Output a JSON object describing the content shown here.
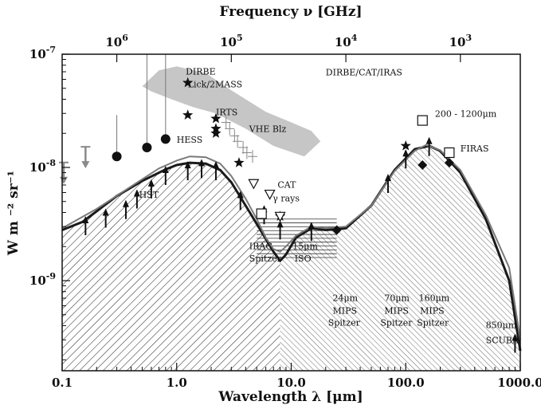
{
  "chart_data": {
    "type": "line",
    "xscale": "log",
    "yscale": "log",
    "xlim": [
      0.1,
      1000
    ],
    "ylim": [
      1.6e-10,
      1e-07
    ],
    "xlabel": "Wavelength λ [μm]",
    "ylabel": "W m ⁻² sr⁻¹",
    "x2label": "Frequency ν [GHz]",
    "grid": false,
    "xticks": [
      {
        "value": 0.1,
        "label": "0.1"
      },
      {
        "value": 1,
        "label": "1.0"
      },
      {
        "value": 10,
        "label": "10.0"
      },
      {
        "value": 100,
        "label": "100.0"
      },
      {
        "value": 1000,
        "label": "1000.0"
      }
    ],
    "yticks": [
      {
        "value": 1e-09,
        "label": "10",
        "exp": "-9"
      },
      {
        "value": 1e-08,
        "label": "10",
        "exp": "-8"
      },
      {
        "value": 1e-07,
        "label": "10",
        "exp": "-7"
      }
    ],
    "x2ticks": [
      {
        "value": 0.3,
        "label": "10",
        "exp": "6"
      },
      {
        "value": 3,
        "label": "10",
        "exp": "5"
      },
      {
        "value": 30,
        "label": "10",
        "exp": "4"
      },
      {
        "value": 300,
        "label": "10",
        "exp": "3"
      }
    ],
    "series": [
      {
        "style": "thick-dark",
        "x": [
          0.1,
          0.15,
          0.2,
          0.3,
          0.5,
          0.8,
          1.0,
          1.3,
          1.8,
          2.4,
          3.0,
          4.0,
          5.5,
          7.0,
          8.0,
          9.0,
          11,
          15,
          20,
          30,
          50,
          80,
          120,
          160,
          200,
          300,
          500,
          800,
          1000
        ],
        "y": [
          2.8e-09,
          3.3e-09,
          4.1e-09,
          5.6e-09,
          7.6e-09,
          9.6e-09,
          1.05e-08,
          1.1e-08,
          1.08e-08,
          9.5e-09,
          7.4e-09,
          4.6e-09,
          2.7e-09,
          1.8e-09,
          1.5e-09,
          1.7e-09,
          2.4e-09,
          2.9e-09,
          2.8e-09,
          2.9e-09,
          4.6e-09,
          9.5e-09,
          1.45e-08,
          1.55e-08,
          1.4e-08,
          9e-09,
          3.5e-09,
          1e-09,
          2.4e-10
        ]
      },
      {
        "style": "thin-grey",
        "x": [
          0.1,
          0.2,
          0.4,
          0.7,
          1.0,
          1.3,
          1.8,
          2.4,
          3.0,
          4.0,
          5.0,
          6.0,
          7.0,
          8.0,
          9.0,
          11,
          15,
          20,
          30,
          50,
          80,
          120,
          150,
          200,
          300,
          500,
          800,
          1000
        ],
        "y": [
          2.9e-09,
          4.3e-09,
          6.8e-09,
          9.8e-09,
          1.15e-08,
          1.25e-08,
          1.23e-08,
          1.08e-08,
          8.4e-09,
          5.3e-09,
          3.5e-09,
          2.4e-09,
          1.9e-09,
          1.8e-09,
          2e-09,
          2.5e-09,
          3e-09,
          2.9e-09,
          3e-09,
          4.6e-09,
          9.3e-09,
          1.4e-08,
          1.58e-08,
          1.42e-08,
          9.5e-09,
          3.8e-09,
          1.3e-09,
          3e-10
        ]
      }
    ],
    "lower_limits": [
      {
        "x": 0.16,
        "y": 3.6e-09
      },
      {
        "x": 0.24,
        "y": 4.2e-09
      },
      {
        "x": 0.36,
        "y": 5e-09
      },
      {
        "x": 0.45,
        "y": 6.2e-09
      },
      {
        "x": 0.6,
        "y": 7.6e-09
      },
      {
        "x": 0.8,
        "y": 1e-08
      },
      {
        "x": 1.25,
        "y": 1.1e-08
      },
      {
        "x": 1.65,
        "y": 1.15e-08
      },
      {
        "x": 2.2,
        "y": 1.1e-08
      },
      {
        "x": 3.6,
        "y": 6e-09
      },
      {
        "x": 5.8,
        "y": 4.5e-09
      },
      {
        "x": 8.0,
        "y": 3.3e-09
      },
      {
        "x": 15,
        "y": 3.2e-09
      },
      {
        "x": 70,
        "y": 8.5e-09
      },
      {
        "x": 100,
        "y": 1.4e-08
      },
      {
        "x": 160,
        "y": 1.8e-08
      },
      {
        "x": 900,
        "y": 3.3e-10
      }
    ],
    "circles": [
      {
        "x": 0.3,
        "y": 1.25e-08,
        "y_hi": 2.9e-08
      },
      {
        "x": 0.55,
        "y": 1.5e-08,
        "y_hi": 1e-07
      },
      {
        "x": 0.8,
        "y": 1.78e-08,
        "y_hi": 1e-07
      }
    ],
    "stars": [
      {
        "x": 1.25,
        "y": 5.6e-08
      },
      {
        "x": 1.25,
        "y": 2.9e-08
      },
      {
        "x": 2.2,
        "y": 2.7e-08
      },
      {
        "x": 2.2,
        "y": 2.2e-08
      },
      {
        "x": 2.2,
        "y": 2e-08
      },
      {
        "x": 3.5,
        "y": 1.1e-08
      },
      {
        "x": 8.0,
        "y": 3.7e-09
      },
      {
        "x": 100,
        "y": 1.55e-08
      }
    ],
    "open_triangles": [
      {
        "x": 4.7,
        "y": 7.2e-09
      },
      {
        "x": 6.5,
        "y": 5.8e-09
      },
      {
        "x": 8.0,
        "y": 3.7e-09
      }
    ],
    "open_squares": [
      {
        "x": 5.5,
        "y": 3.9e-09
      },
      {
        "x": 140,
        "y": 2.6e-08
      },
      {
        "x": 240,
        "y": 1.35e-08
      }
    ],
    "diamonds": [
      {
        "x": 25,
        "y": 2.8e-09
      },
      {
        "x": 140,
        "y": 1.05e-08
      },
      {
        "x": 240,
        "y": 1.1e-08
      }
    ],
    "grey_arrows": [
      {
        "x": 0.1,
        "y": 8e-09
      },
      {
        "x": 0.16,
        "y": 1.1e-08
      }
    ],
    "plus_markers": [
      {
        "x": 2.9,
        "y": 2.2e-08
      },
      {
        "x": 3.2,
        "y": 1.9e-08
      },
      {
        "x": 3.4,
        "y": 1.7e-08
      },
      {
        "x": 3.8,
        "y": 1.5e-08
      },
      {
        "x": 4.1,
        "y": 1.35e-08
      },
      {
        "x": 4.6,
        "y": 1.25e-08
      },
      {
        "x": 2.7,
        "y": 2.5e-08
      }
    ],
    "vhe_band": [
      [
        0.5,
        5.2e-08
      ],
      [
        0.7,
        7.2e-08
      ],
      [
        1.0,
        7.8e-08
      ],
      [
        1.8,
        6.8e-08
      ],
      [
        3.0,
        4.8e-08
      ],
      [
        6.0,
        3.1e-08
      ],
      [
        10,
        2.5e-08
      ],
      [
        15,
        2.1e-08
      ],
      [
        18,
        1.7e-08
      ],
      [
        13,
        1.25e-08
      ],
      [
        7.0,
        1.55e-08
      ],
      [
        4.0,
        2.2e-08
      ],
      [
        2.2,
        3e-08
      ],
      [
        1.4,
        3.4e-08
      ],
      [
        0.9,
        4e-08
      ],
      [
        0.6,
        4.7e-08
      ]
    ],
    "gamma_ray_limits": {
      "x_range": [
        5,
        25
      ],
      "y_top": 3.5e-09,
      "y_bottom": 1.6e-09,
      "lines": 11
    },
    "hatch_split_x": 8.0,
    "annotations": [
      {
        "text": "DIRBE",
        "x": 1.2,
        "y": 6.6e-08
      },
      {
        "text": "Lick/2MASS",
        "x": 1.25,
        "y": 5.1e-08
      },
      {
        "text": "IRTS",
        "x": 2.2,
        "y": 2.9e-08
      },
      {
        "text": "VHE Blz",
        "x": 4.3,
        "y": 2.05e-08
      },
      {
        "text": "HESS",
        "x": 1.0,
        "y": 1.65e-08
      },
      {
        "text": "HST",
        "x": 0.47,
        "y": 5.4e-09
      },
      {
        "text": "CAT",
        "x": 7.6,
        "y": 6.6e-09
      },
      {
        "text": "γ rays",
        "x": 6.9,
        "y": 5e-09
      },
      {
        "text": "DIRBE/CAT/IRAS",
        "x": 20,
        "y": 6.5e-08
      },
      {
        "text": "200 - 1200μm",
        "x": 180,
        "y": 2.8e-08
      },
      {
        "text": "FIRAS",
        "x": 300,
        "y": 1.38e-08
      },
      {
        "text": "IRAC",
        "x": 4.3,
        "y": 1.9e-09
      },
      {
        "text": "Spitzer",
        "x": 4.3,
        "y": 1.48e-09
      },
      {
        "text": "15μm",
        "x": 10.3,
        "y": 1.9e-09
      },
      {
        "text": "ISO",
        "x": 10.7,
        "y": 1.48e-09
      },
      {
        "text": "24μm",
        "x": 23,
        "y": 6.6e-10
      },
      {
        "text": "MIPS",
        "x": 23,
        "y": 5.1e-10
      },
      {
        "text": "Spitzer",
        "x": 21,
        "y": 4e-10
      },
      {
        "text": "70μm",
        "x": 65,
        "y": 6.6e-10
      },
      {
        "text": "MIPS",
        "x": 65,
        "y": 5.1e-10
      },
      {
        "text": "Spitzer",
        "x": 60,
        "y": 4e-10
      },
      {
        "text": "160μm",
        "x": 130,
        "y": 6.6e-10
      },
      {
        "text": "MIPS",
        "x": 133,
        "y": 5.1e-10
      },
      {
        "text": "Spitzer",
        "x": 125,
        "y": 4e-10
      },
      {
        "text": "850μm",
        "x": 500,
        "y": 3.8e-10
      },
      {
        "text": "SCUBA",
        "x": 500,
        "y": 2.8e-10
      }
    ]
  }
}
